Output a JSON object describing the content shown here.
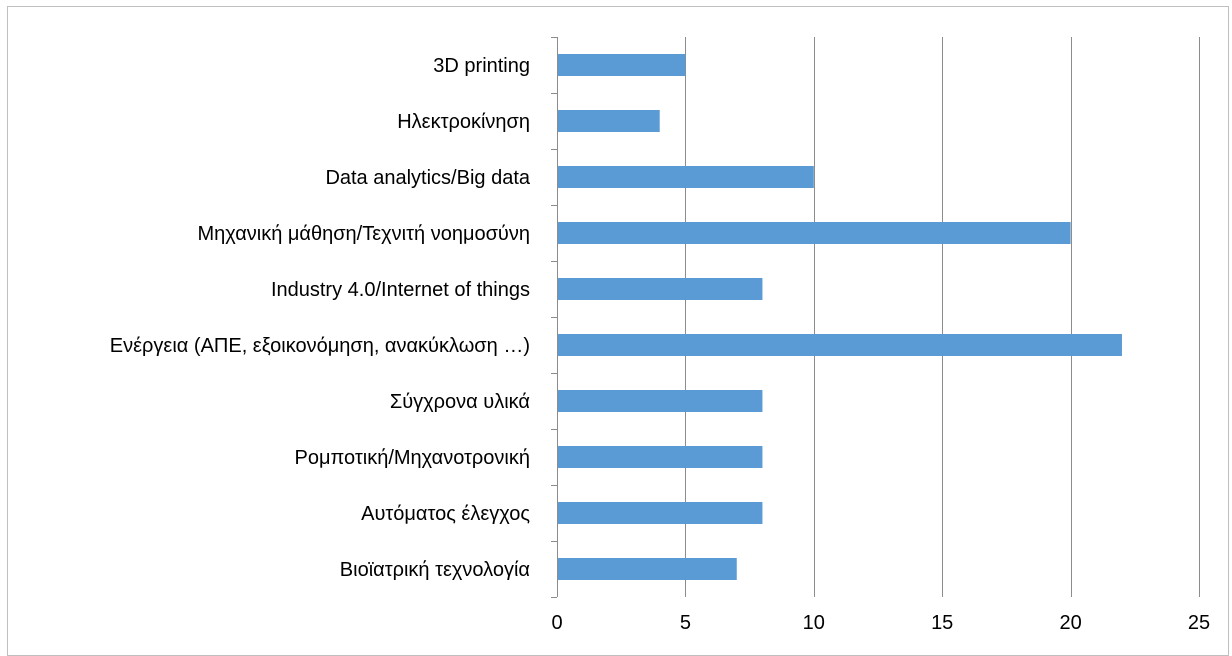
{
  "chart_data": {
    "type": "bar",
    "orientation": "horizontal",
    "categories": [
      "3D printing",
      "Ηλεκτροκίνηση",
      "Data analytics/Big data",
      "Μηχανική μάθηση/Τεχνιτή νοημοσύνη",
      "Industry 4.0/Internet of things",
      "Ενέργεια (ΑΠΕ, εξοικονόμηση, ανακύκλωση …)",
      "Σύγχρονα υλικά",
      "Ρομποτική/Μηχανοτρονική",
      "Αυτόματος έλεγχος",
      "Βιοϊατρική τεχνολογία"
    ],
    "values": [
      5,
      4,
      10,
      20,
      8,
      22,
      8,
      8,
      8,
      7
    ],
    "xlim": [
      0,
      25
    ],
    "xticks": [
      "0",
      "5",
      "10",
      "15",
      "20",
      "25"
    ],
    "title": "",
    "xlabel": "",
    "ylabel": "",
    "grid": "vertical",
    "legend": "none",
    "colors": {
      "bar": "#5b9bd5",
      "grid": "#8c8c8c",
      "border": "#bfbfbf"
    }
  }
}
